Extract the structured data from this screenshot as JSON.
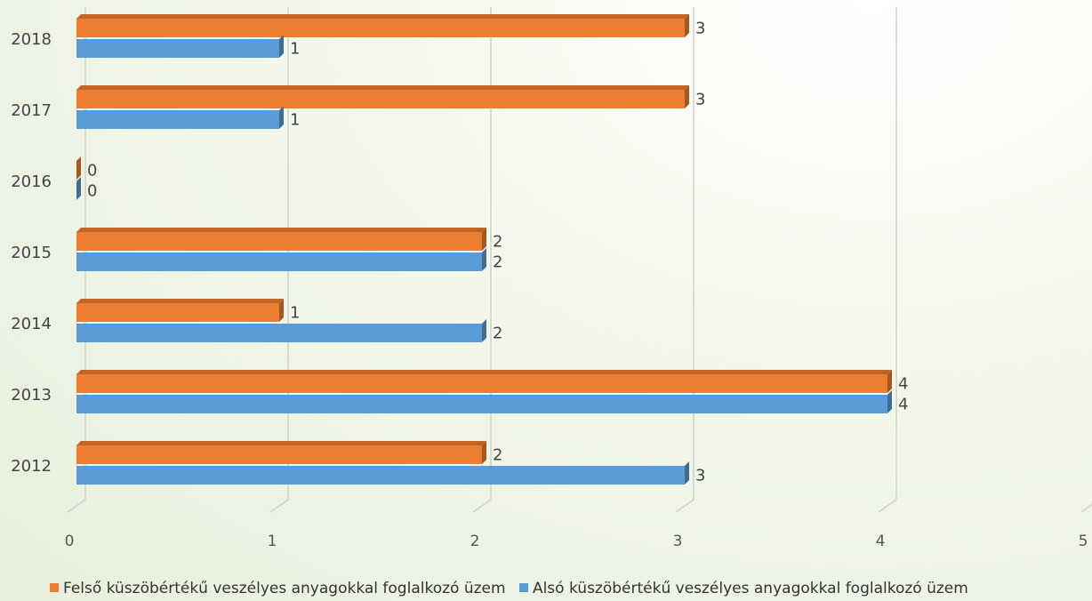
{
  "chart_data": {
    "type": "bar",
    "orientation": "horizontal",
    "categories": [
      "2012",
      "2013",
      "2014",
      "2015",
      "2016",
      "2017",
      "2018"
    ],
    "series": [
      {
        "name": "Felső küszöbértékű veszélyes anyagokkal foglalkozó üzem",
        "color": "#ED7D31",
        "values": [
          2,
          4,
          1,
          2,
          0,
          3,
          3
        ]
      },
      {
        "name": "Alsó küszöbértékű veszélyes anyagokkal foglalkozó üzem",
        "color": "#5B9BD5",
        "values": [
          3,
          4,
          2,
          2,
          0,
          1,
          1
        ]
      }
    ],
    "x_ticks": [
      "0",
      "1",
      "2",
      "3",
      "4",
      "5"
    ],
    "xlim": [
      0,
      5
    ],
    "grid": true,
    "legend_position": "bottom",
    "data_labels": true
  }
}
